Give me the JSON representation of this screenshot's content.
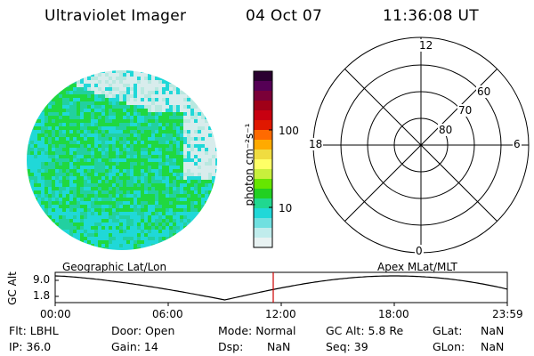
{
  "header": {
    "instrument": "Ultraviolet Imager",
    "date": "04 Oct 07",
    "time": "11:36:08 UT"
  },
  "colorbar": {
    "unit_label": "photon cm⁻²s⁻¹",
    "ticks": [
      "100",
      "10"
    ],
    "colors": [
      "#2a0030",
      "#550055",
      "#7a0038",
      "#a00018",
      "#c80010",
      "#e01800",
      "#ff6a00",
      "#ffaa00",
      "#f0dc40",
      "#ffff66",
      "#c8f03c",
      "#66e600",
      "#22d022",
      "#20d890",
      "#20d8d8",
      "#70e0e0",
      "#c0ecec",
      "#e8f2f2"
    ]
  },
  "polar": {
    "mlt_labels": [
      "12",
      "18",
      "6",
      "0"
    ],
    "lat_labels": [
      "60",
      "70",
      "80"
    ]
  },
  "image_colors": {
    "bright": "#20d840",
    "mid": "#22d0a0",
    "cyan": "#20d8d8",
    "faint": "#d8ecec"
  },
  "timeline": {
    "ylabel": "GC Alt",
    "yticks": [
      "9.0",
      "1.8"
    ],
    "left_title": "Geographic Lat/Lon",
    "right_title": "Apex MLat/MLT",
    "xticks": [
      "00:00",
      "06:00",
      "12:00",
      "18:00",
      "23:59"
    ],
    "marker_color": "#cc0000"
  },
  "info": {
    "row1": [
      "Flt: LBHL",
      "Door: Open",
      "Mode: Normal",
      "GC Alt: 5.8 Re",
      "GLat:",
      "NaN"
    ],
    "row2": [
      "IP: 36.0",
      "Gain: 14",
      "Dsp:",
      "NaN",
      "Seq: 39",
      "GLon:",
      "NaN"
    ]
  }
}
